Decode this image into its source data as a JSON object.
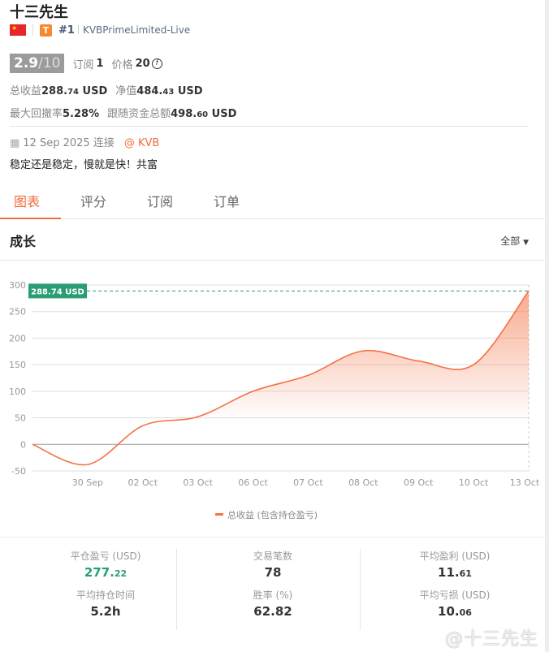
{
  "profile": {
    "name": "十三先生",
    "flag": "china-flag-icon",
    "tier_badge": "T",
    "rank": "#1",
    "broker": "KVBPrimeLimited-Live",
    "score": "2.9",
    "score_max": "/10",
    "subscribe_label": "订阅",
    "subscribe_count": "1",
    "price_label": "价格",
    "price_value": "20",
    "total_profit_label": "总收益",
    "total_profit_int": "288.",
    "total_profit_dec": "74",
    "total_profit_unit": "USD",
    "equity_label": "净值",
    "equity_int": "484.",
    "equity_dec": "43",
    "equity_unit": "USD",
    "drawdown_label": "最大回撤率",
    "drawdown_value": "5.28%",
    "follow_label": "跟随资金总额",
    "follow_int": "498.",
    "follow_dec": "60",
    "follow_unit": "USD",
    "connected_date": "12 Sep 2025 连接",
    "connected_at": "@ KVB",
    "motto": "稳定还是稳定，慢就是快！共富"
  },
  "tabs": [
    {
      "label": "图表"
    },
    {
      "label": "评分"
    },
    {
      "label": "订阅"
    },
    {
      "label": "订单"
    }
  ],
  "section": {
    "title": "成长",
    "range": "全部"
  },
  "colors": {
    "accent": "#f26b3a",
    "positive": "#2a9d73",
    "line": "#f47244"
  },
  "chart_data": {
    "type": "area",
    "x": [
      "",
      "30 Sep",
      "02 Oct",
      "03 Oct",
      "06 Oct",
      "07 Oct",
      "08 Oct",
      "09 Oct",
      "10 Oct",
      "13 Oct"
    ],
    "series": [
      {
        "name": "总收益 (包含持仓盈亏)",
        "values": [
          0,
          -38,
          35,
          52,
          100,
          130,
          176,
          157,
          150,
          288.74
        ]
      }
    ],
    "yticks": [
      300,
      250,
      200,
      150,
      100,
      50,
      0,
      -50
    ],
    "ylim": [
      -50,
      300
    ],
    "grid": true,
    "legend": "bottom",
    "last_label": "288.74 USD"
  },
  "stats": [
    {
      "label": "平仓盈亏 (USD)",
      "int": "277.",
      "dec": "22",
      "positive": true
    },
    {
      "label": "交易笔数",
      "int": "78",
      "dec": ""
    },
    {
      "label": "平均盈利 (USD)",
      "int": "11.",
      "dec": "61"
    },
    {
      "label": "平均持仓时间",
      "int": "5.2h",
      "dec": ""
    },
    {
      "label": "胜率 (%)",
      "int": "62.82",
      "dec": ""
    },
    {
      "label": "平均亏损 (USD)",
      "int": "10.",
      "dec": "06"
    }
  ],
  "watermark": "@十三先生"
}
